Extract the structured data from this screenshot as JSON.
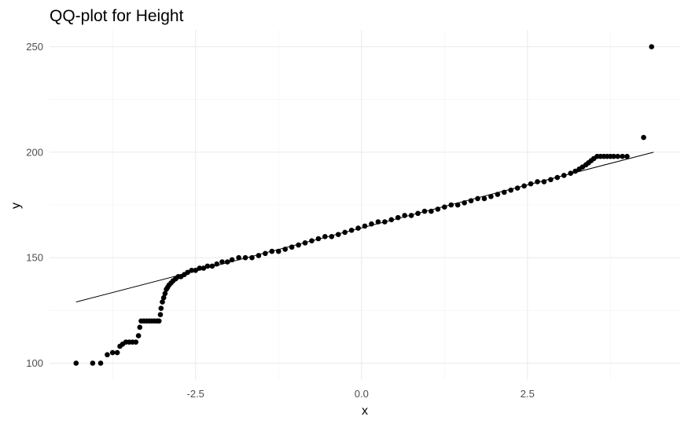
{
  "chart_data": {
    "type": "scatter",
    "title": "QQ-plot for Height",
    "xlabel": "x",
    "ylabel": "y",
    "xlim": [
      -4.7,
      4.8
    ],
    "ylim": [
      92,
      258
    ],
    "x_ticks": [
      -2.5,
      0.0,
      2.5
    ],
    "x_tick_labels": [
      "-2.5",
      "0.0",
      "2.5"
    ],
    "y_ticks": [
      100,
      150,
      200,
      250
    ],
    "y_tick_labels": [
      "100",
      "150",
      "200",
      "250"
    ],
    "grid": true,
    "legend": "none",
    "point_color": "#000000",
    "reference_line": {
      "x": [
        -4.3,
        4.4
      ],
      "y": [
        129,
        200
      ],
      "color": "#000000"
    },
    "points": [
      [
        -4.3,
        100
      ],
      [
        -4.05,
        100
      ],
      [
        -3.93,
        100
      ],
      [
        -3.83,
        104
      ],
      [
        -3.75,
        105
      ],
      [
        -3.68,
        105
      ],
      [
        -3.64,
        108
      ],
      [
        -3.6,
        109
      ],
      [
        -3.55,
        110
      ],
      [
        -3.5,
        110
      ],
      [
        -3.45,
        110
      ],
      [
        -3.4,
        110
      ],
      [
        -3.36,
        113
      ],
      [
        -3.34,
        117
      ],
      [
        -3.32,
        120
      ],
      [
        -3.28,
        120
      ],
      [
        -3.24,
        120
      ],
      [
        -3.2,
        120
      ],
      [
        -3.16,
        120
      ],
      [
        -3.12,
        120
      ],
      [
        -3.08,
        120
      ],
      [
        -3.05,
        120
      ],
      [
        -3.03,
        123
      ],
      [
        -3.02,
        126
      ],
      [
        -3.0,
        129
      ],
      [
        -2.98,
        131
      ],
      [
        -2.96,
        133
      ],
      [
        -2.94,
        135
      ],
      [
        -2.92,
        136
      ],
      [
        -2.9,
        137
      ],
      [
        -2.87,
        138
      ],
      [
        -2.84,
        139
      ],
      [
        -2.8,
        140
      ],
      [
        -2.76,
        141
      ],
      [
        -2.72,
        141
      ],
      [
        -2.67,
        142
      ],
      [
        -2.62,
        143
      ],
      [
        -2.56,
        144
      ],
      [
        -2.5,
        144
      ],
      [
        -2.44,
        145
      ],
      [
        -2.38,
        145
      ],
      [
        -2.32,
        146
      ],
      [
        -2.25,
        146
      ],
      [
        -2.18,
        147
      ],
      [
        -2.1,
        148
      ],
      [
        -2.02,
        148
      ],
      [
        -1.95,
        149
      ],
      [
        -1.85,
        150
      ],
      [
        -1.75,
        150
      ],
      [
        -1.65,
        150
      ],
      [
        -1.55,
        151
      ],
      [
        -1.45,
        152
      ],
      [
        -1.35,
        153
      ],
      [
        -1.25,
        153
      ],
      [
        -1.15,
        154
      ],
      [
        -1.05,
        155
      ],
      [
        -0.95,
        156
      ],
      [
        -0.85,
        157
      ],
      [
        -0.75,
        158
      ],
      [
        -0.65,
        159
      ],
      [
        -0.55,
        160
      ],
      [
        -0.45,
        160
      ],
      [
        -0.35,
        161
      ],
      [
        -0.25,
        162
      ],
      [
        -0.15,
        163
      ],
      [
        -0.05,
        164
      ],
      [
        0.05,
        165
      ],
      [
        0.15,
        166
      ],
      [
        0.25,
        167
      ],
      [
        0.35,
        167
      ],
      [
        0.45,
        168
      ],
      [
        0.55,
        169
      ],
      [
        0.65,
        170
      ],
      [
        0.75,
        170
      ],
      [
        0.85,
        171
      ],
      [
        0.95,
        172
      ],
      [
        1.05,
        172
      ],
      [
        1.15,
        173
      ],
      [
        1.25,
        174
      ],
      [
        1.35,
        175
      ],
      [
        1.45,
        175
      ],
      [
        1.55,
        176
      ],
      [
        1.65,
        177
      ],
      [
        1.75,
        178
      ],
      [
        1.85,
        178
      ],
      [
        1.95,
        179
      ],
      [
        2.05,
        180
      ],
      [
        2.15,
        181
      ],
      [
        2.25,
        182
      ],
      [
        2.35,
        183
      ],
      [
        2.45,
        184
      ],
      [
        2.55,
        185
      ],
      [
        2.65,
        186
      ],
      [
        2.75,
        186
      ],
      [
        2.85,
        187
      ],
      [
        2.95,
        188
      ],
      [
        3.05,
        189
      ],
      [
        3.15,
        190
      ],
      [
        3.22,
        191
      ],
      [
        3.28,
        192
      ],
      [
        3.33,
        193
      ],
      [
        3.38,
        194
      ],
      [
        3.42,
        195
      ],
      [
        3.46,
        196
      ],
      [
        3.5,
        197
      ],
      [
        3.55,
        198
      ],
      [
        3.6,
        198
      ],
      [
        3.65,
        198
      ],
      [
        3.7,
        198
      ],
      [
        3.75,
        198
      ],
      [
        3.8,
        198
      ],
      [
        3.86,
        198
      ],
      [
        3.93,
        198
      ],
      [
        4.0,
        198
      ],
      [
        4.25,
        207
      ],
      [
        4.37,
        250
      ]
    ]
  }
}
